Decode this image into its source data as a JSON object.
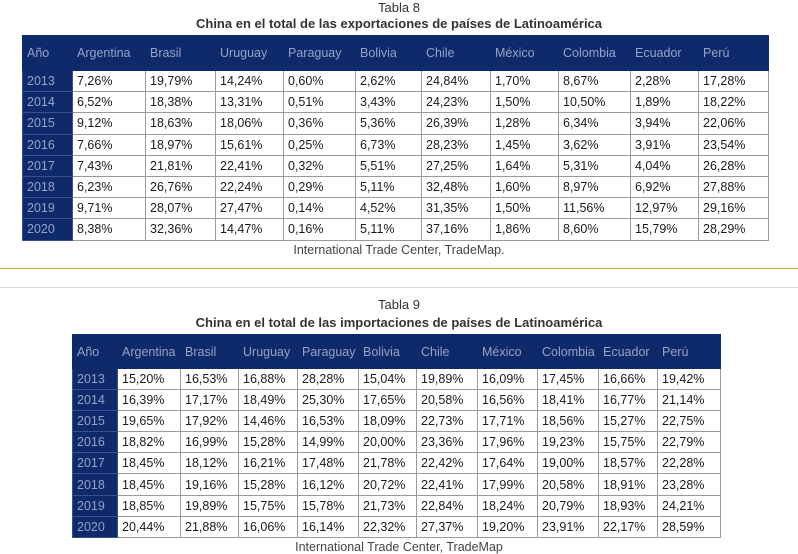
{
  "tables": [
    {
      "title": "Tabla 8",
      "subtitle": "China en el total de las exportaciones de países de Latinoamérica",
      "columns": [
        "Año",
        "Argentina",
        "Brasil",
        "Uruguay",
        "Paraguay",
        "Bolivia",
        "Chile",
        "México",
        "Colombia",
        "Ecuador",
        "Perú"
      ],
      "rows": [
        [
          "2013",
          "7,26%",
          "19,79%",
          "14,24%",
          "0,60%",
          "2,62%",
          "24,84%",
          "1,70%",
          "8,67%",
          "2,28%",
          "17,28%"
        ],
        [
          "2014",
          "6,52%",
          "18,38%",
          "13,31%",
          "0,51%",
          "3,43%",
          "24,23%",
          "1,50%",
          "10,50%",
          "1,89%",
          "18,22%"
        ],
        [
          "2015",
          "9,12%",
          "18,63%",
          "18,06%",
          "0,36%",
          "5,36%",
          "26,39%",
          "1,28%",
          "6,34%",
          "3,94%",
          "22,06%"
        ],
        [
          "2016",
          "7,66%",
          "18,97%",
          "15,61%",
          "0,25%",
          "6,73%",
          "28,23%",
          "1,45%",
          "3,62%",
          "3,91%",
          "23,54%"
        ],
        [
          "2017",
          "7,43%",
          "21,81%",
          "22,41%",
          "0,32%",
          "5,51%",
          "27,25%",
          "1,64%",
          "5,31%",
          "4,04%",
          "26,28%"
        ],
        [
          "2018",
          "6,23%",
          "26,76%",
          "22,24%",
          "0,29%",
          "5,11%",
          "32,48%",
          "1,60%",
          "8,97%",
          "6,92%",
          "27,88%"
        ],
        [
          "2019",
          "9,71%",
          "28,07%",
          "27,47%",
          "0,14%",
          "4,52%",
          "31,35%",
          "1,50%",
          "11,56%",
          "12,97%",
          "29,16%"
        ],
        [
          "2020",
          "8,38%",
          "32,36%",
          "14,47%",
          "0,16%",
          "5,11%",
          "37,16%",
          "1,86%",
          "8,60%",
          "15,79%",
          "28,29%"
        ]
      ],
      "source": "International Trade Center, TradeMap."
    },
    {
      "title": "Tabla 9",
      "subtitle": "China en el total de las importaciones de países de Latinoamérica",
      "columns": [
        "Año",
        "Argentina",
        "Brasil",
        "Uruguay",
        "Paraguay",
        "Bolivia",
        "Chile",
        "México",
        "Colombia",
        "Ecuador",
        "Perú"
      ],
      "rows": [
        [
          "2013",
          "15,20%",
          "16,53%",
          "16,88%",
          "28,28%",
          "15,04%",
          "19,89%",
          "16,09%",
          "17,45%",
          "16,66%",
          "19,42%"
        ],
        [
          "2014",
          "16,39%",
          "17,17%",
          "18,49%",
          "25,30%",
          "17,65%",
          "20,58%",
          "16,56%",
          "18,41%",
          "16,77%",
          "21,14%"
        ],
        [
          "2015",
          "19,65%",
          "17,92%",
          "14,46%",
          "16,53%",
          "18,09%",
          "22,73%",
          "17,71%",
          "18,56%",
          "15,27%",
          "22,75%"
        ],
        [
          "2016",
          "18,82%",
          "16,99%",
          "15,28%",
          "14,99%",
          "20,00%",
          "23,36%",
          "17,96%",
          "19,23%",
          "15,75%",
          "22,79%"
        ],
        [
          "2017",
          "18,45%",
          "18,12%",
          "16,21%",
          "17,48%",
          "21,78%",
          "22,42%",
          "17,64%",
          "19,00%",
          "18,57%",
          "22,28%"
        ],
        [
          "2018",
          "18,45%",
          "19,16%",
          "15,28%",
          "16,12%",
          "20,72%",
          "22,41%",
          "17,99%",
          "20,58%",
          "18,91%",
          "23,28%"
        ],
        [
          "2019",
          "18,85%",
          "19,89%",
          "15,75%",
          "15,78%",
          "21,73%",
          "22,84%",
          "18,24%",
          "20,79%",
          "18,93%",
          "24,21%"
        ],
        [
          "2020",
          "20,44%",
          "21,88%",
          "16,06%",
          "16,14%",
          "22,32%",
          "27,37%",
          "19,20%",
          "23,91%",
          "22,17%",
          "28,59%"
        ]
      ],
      "source": "International Trade Center, TradeMap"
    }
  ]
}
